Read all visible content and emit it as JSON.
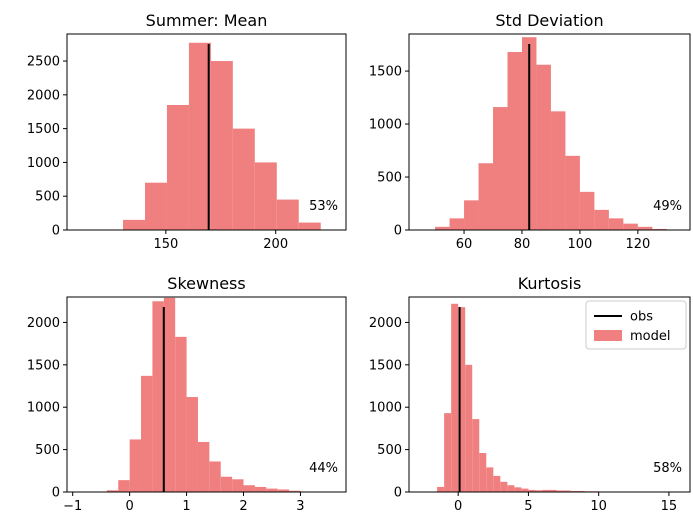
{
  "colors": {
    "model": "#f08080",
    "obs": "#000000"
  },
  "legend": {
    "items": [
      "obs",
      "model"
    ],
    "placement": "upper right"
  },
  "chart_data": [
    {
      "type": "histogram",
      "title": "Summer: Mean",
      "xlim": [
        105,
        232
      ],
      "ylim": [
        0,
        2900
      ],
      "xticks": [
        150,
        200
      ],
      "yticks": [
        0,
        500,
        1000,
        1500,
        2000,
        2500
      ],
      "bins": [
        {
          "x0": 120.5,
          "x1": 130.5,
          "count": 0
        },
        {
          "x0": 130.5,
          "x1": 140.5,
          "count": 150
        },
        {
          "x0": 140.5,
          "x1": 150.5,
          "count": 700
        },
        {
          "x0": 150.5,
          "x1": 160.5,
          "count": 1850
        },
        {
          "x0": 160.5,
          "x1": 170.5,
          "count": 2770
        },
        {
          "x0": 170.5,
          "x1": 180.5,
          "count": 2500
        },
        {
          "x0": 180.5,
          "x1": 190.5,
          "count": 1500
        },
        {
          "x0": 190.5,
          "x1": 200.5,
          "count": 1000
        },
        {
          "x0": 200.5,
          "x1": 210.5,
          "count": 450
        },
        {
          "x0": 210.5,
          "x1": 220.5,
          "count": 110
        },
        {
          "x0": 220.5,
          "x1": 230.5,
          "count": 5
        }
      ],
      "obs": 169.5,
      "annotation": "53%"
    },
    {
      "type": "histogram",
      "title": "Std Deviation",
      "xlim": [
        41,
        138
      ],
      "ylim": [
        0,
        1850
      ],
      "xticks": [
        60,
        80,
        100,
        120
      ],
      "yticks": [
        0,
        500,
        1000,
        1500
      ],
      "bins": [
        {
          "x0": 50,
          "x1": 55,
          "count": 30
        },
        {
          "x0": 55,
          "x1": 60,
          "count": 110
        },
        {
          "x0": 60,
          "x1": 65,
          "count": 280
        },
        {
          "x0": 65,
          "x1": 70,
          "count": 630
        },
        {
          "x0": 70,
          "x1": 75,
          "count": 1160
        },
        {
          "x0": 75,
          "x1": 80,
          "count": 1680
        },
        {
          "x0": 80,
          "x1": 85,
          "count": 1820
        },
        {
          "x0": 85,
          "x1": 90,
          "count": 1560
        },
        {
          "x0": 90,
          "x1": 95,
          "count": 1120
        },
        {
          "x0": 95,
          "x1": 100,
          "count": 700
        },
        {
          "x0": 100,
          "x1": 105,
          "count": 360
        },
        {
          "x0": 105,
          "x1": 110,
          "count": 190
        },
        {
          "x0": 110,
          "x1": 115,
          "count": 110
        },
        {
          "x0": 115,
          "x1": 120,
          "count": 60
        },
        {
          "x0": 120,
          "x1": 125,
          "count": 30
        },
        {
          "x0": 125,
          "x1": 130,
          "count": 10
        }
      ],
      "obs": 82.5,
      "annotation": "49%"
    },
    {
      "type": "histogram",
      "title": "Skewness",
      "xlim": [
        -1.1,
        3.8
      ],
      "ylim": [
        0,
        2300
      ],
      "xticks": [
        -1,
        0,
        1,
        2,
        3
      ],
      "yticks": [
        0,
        500,
        1000,
        1500,
        2000
      ],
      "bins": [
        {
          "x0": -0.4,
          "x1": -0.2,
          "count": 20
        },
        {
          "x0": -0.2,
          "x1": 0.0,
          "count": 140
        },
        {
          "x0": 0.0,
          "x1": 0.2,
          "count": 620
        },
        {
          "x0": 0.2,
          "x1": 0.4,
          "count": 1370
        },
        {
          "x0": 0.4,
          "x1": 0.6,
          "count": 2250
        },
        {
          "x0": 0.6,
          "x1": 0.8,
          "count": 2290
        },
        {
          "x0": 0.8,
          "x1": 1.0,
          "count": 1830
        },
        {
          "x0": 1.0,
          "x1": 1.2,
          "count": 1120
        },
        {
          "x0": 1.2,
          "x1": 1.4,
          "count": 590
        },
        {
          "x0": 1.4,
          "x1": 1.6,
          "count": 360
        },
        {
          "x0": 1.6,
          "x1": 1.8,
          "count": 180
        },
        {
          "x0": 1.8,
          "x1": 2.0,
          "count": 150
        },
        {
          "x0": 2.0,
          "x1": 2.2,
          "count": 80
        },
        {
          "x0": 2.2,
          "x1": 2.4,
          "count": 60
        },
        {
          "x0": 2.4,
          "x1": 2.6,
          "count": 40
        },
        {
          "x0": 2.6,
          "x1": 2.8,
          "count": 30
        },
        {
          "x0": 2.8,
          "x1": 3.0,
          "count": 15
        },
        {
          "x0": 3.0,
          "x1": 3.2,
          "count": 5
        }
      ],
      "obs": 0.6,
      "annotation": "44%"
    },
    {
      "type": "histogram",
      "title": "Kurtosis",
      "xlim": [
        -3.5,
        16.5
      ],
      "ylim": [
        0,
        2300
      ],
      "xticks": [
        0,
        5,
        10,
        15
      ],
      "yticks": [
        0,
        500,
        1000,
        1500,
        2000
      ],
      "bins": [
        {
          "x0": -1.5,
          "x1": -1.0,
          "count": 60
        },
        {
          "x0": -1.0,
          "x1": -0.5,
          "count": 930
        },
        {
          "x0": -0.5,
          "x1": 0.0,
          "count": 2220
        },
        {
          "x0": 0.0,
          "x1": 0.5,
          "count": 2180
        },
        {
          "x0": 0.5,
          "x1": 1.0,
          "count": 1500
        },
        {
          "x0": 1.0,
          "x1": 1.5,
          "count": 860
        },
        {
          "x0": 1.5,
          "x1": 2.0,
          "count": 460
        },
        {
          "x0": 2.0,
          "x1": 2.5,
          "count": 290
        },
        {
          "x0": 2.5,
          "x1": 3.0,
          "count": 190
        },
        {
          "x0": 3.0,
          "x1": 3.5,
          "count": 120
        },
        {
          "x0": 3.5,
          "x1": 4.0,
          "count": 80
        },
        {
          "x0": 4.0,
          "x1": 4.5,
          "count": 55
        },
        {
          "x0": 4.5,
          "x1": 5.0,
          "count": 40
        },
        {
          "x0": 5.0,
          "x1": 5.5,
          "count": 25
        },
        {
          "x0": 5.5,
          "x1": 6.0,
          "count": 20
        },
        {
          "x0": 6.0,
          "x1": 7.0,
          "count": 25
        },
        {
          "x0": 7.0,
          "x1": 8.0,
          "count": 18
        },
        {
          "x0": 8.0,
          "x1": 9.0,
          "count": 12
        },
        {
          "x0": 9.0,
          "x1": 10.0,
          "count": 8
        },
        {
          "x0": 10.0,
          "x1": 11.0,
          "count": 5
        },
        {
          "x0": 11.0,
          "x1": 12.0,
          "count": 3
        }
      ],
      "obs": 0.1,
      "annotation": "58%"
    }
  ]
}
